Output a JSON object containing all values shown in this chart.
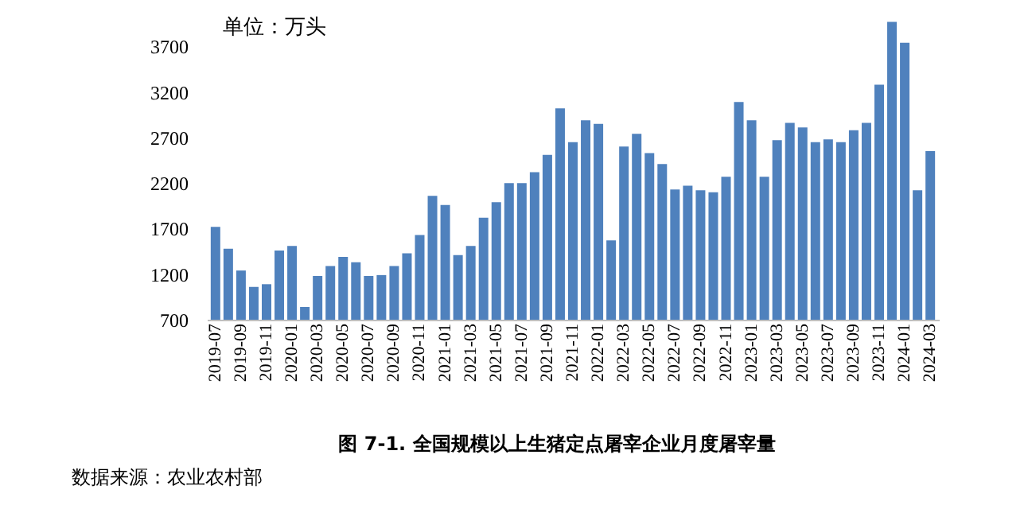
{
  "chart_data": {
    "type": "bar",
    "title": "图 7-1.  全国规模以上生猪定点屠宰企业月度屠宰量",
    "annotations": [
      "单位：万头",
      "数据来源：农业农村部"
    ],
    "categories": [
      "2019-07",
      null,
      "2019-09",
      null,
      "2019-11",
      null,
      "2020-01",
      null,
      "2020-03",
      null,
      "2020-05",
      null,
      "2020-07",
      null,
      "2020-09",
      null,
      "2020-11",
      null,
      "2021-01",
      null,
      "2021-03",
      null,
      "2021-05",
      null,
      "2021-07",
      null,
      "2021-09",
      null,
      "2021-11",
      null,
      "2022-01",
      null,
      "2022-03",
      null,
      "2022-05",
      null,
      "2022-07",
      null,
      "2022-09",
      null,
      "2022-11",
      null,
      "2023-01",
      null,
      "2023-03",
      null,
      "2023-05",
      null,
      "2023-07",
      null,
      "2023-09",
      null,
      "2023-11",
      null,
      "2024-01",
      null,
      "2024-03"
    ],
    "values": [
      1720,
      1480,
      1240,
      1060,
      1090,
      1460,
      1510,
      840,
      1180,
      1290,
      1390,
      1330,
      1180,
      1190,
      1290,
      1430,
      1630,
      2060,
      1960,
      1410,
      1510,
      1820,
      1990,
      2200,
      2200,
      2320,
      2510,
      3020,
      2650,
      2890,
      2850,
      1570,
      2600,
      2740,
      2530,
      2410,
      2130,
      2170,
      2120,
      2100,
      2270,
      3090,
      2890,
      2270,
      2670,
      2860,
      2810,
      2650,
      2680,
      2650,
      2780,
      2860,
      3280,
      3970,
      3740,
      2120,
      2550
    ],
    "color": "#4f81bd",
    "ylim": [
      700,
      4000
    ],
    "yticks": [
      700,
      1200,
      1700,
      2200,
      2700,
      3200,
      3700
    ],
    "grid": false
  }
}
